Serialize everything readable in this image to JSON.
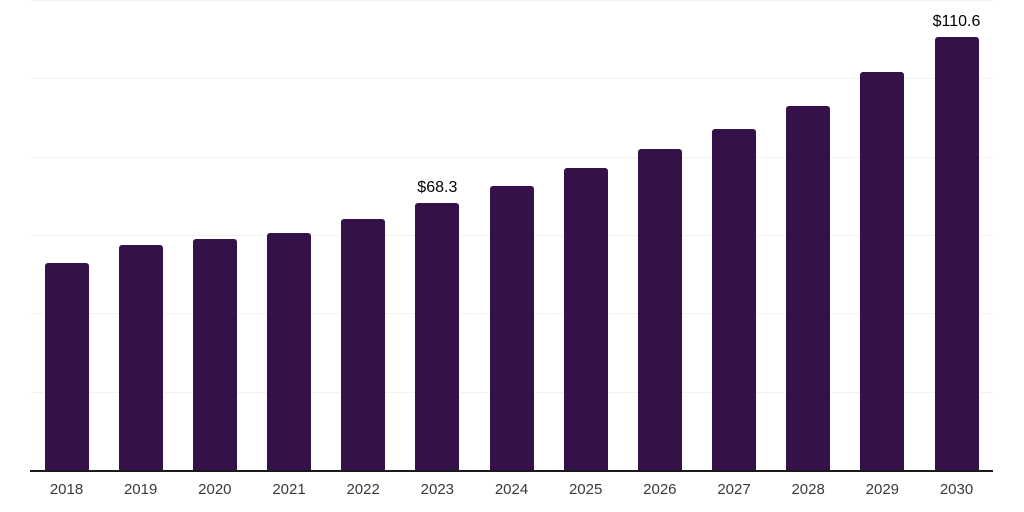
{
  "chart_data": {
    "type": "bar",
    "title": "",
    "xlabel": "",
    "ylabel": "",
    "categories": [
      "2018",
      "2019",
      "2020",
      "2021",
      "2022",
      "2023",
      "2024",
      "2025",
      "2026",
      "2027",
      "2028",
      "2029",
      "2030"
    ],
    "values": [
      52.9,
      57.4,
      59.0,
      60.6,
      64.1,
      68.3,
      72.6,
      77.2,
      82.0,
      87.1,
      93.0,
      101.6,
      110.6
    ],
    "annotations": [
      {
        "category": "2023",
        "label": "$68.3"
      },
      {
        "category": "2030",
        "label": "$110.6"
      }
    ],
    "ylim": [
      0,
      120
    ],
    "gridline_step": 20,
    "grid": "horizontal-only",
    "legend": "none",
    "colors": {
      "bar": "#341148",
      "gridline": "#f2f2f2",
      "axis_line": "#1a1a1a",
      "tick_label": "#3a3a3a",
      "annotation_label": "#000000",
      "background": "#ffffff"
    }
  }
}
